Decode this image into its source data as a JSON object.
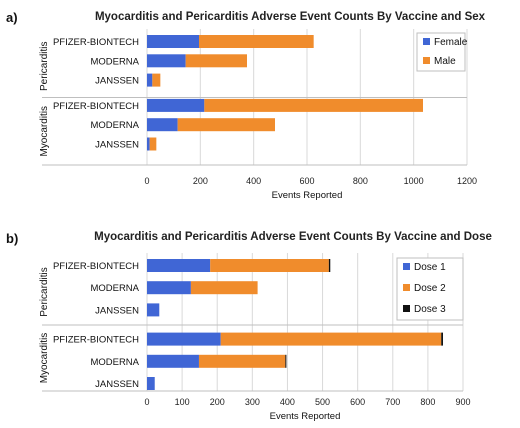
{
  "chart_data": [
    {
      "panel": "a)",
      "type": "bar",
      "orientation": "horizontal",
      "stacked": true,
      "title": "Myocarditis and Pericarditis Adverse Event Counts By Vaccine and Sex",
      "xlabel": "Events Reported",
      "xlim": [
        0,
        1200
      ],
      "xticks": [
        0,
        200,
        400,
        600,
        800,
        1000,
        1200
      ],
      "groups": [
        {
          "name": "Pericarditis",
          "categories": [
            "PFIZER-BIONTECH",
            "MODERNA",
            "JANSSEN"
          ]
        },
        {
          "name": "Myocarditis",
          "categories": [
            "PFIZER-BIONTECH",
            "MODERNA",
            "JANSSEN"
          ]
        }
      ],
      "series": [
        {
          "name": "Female",
          "color": "#4066D5",
          "values": [
            195,
            145,
            20,
            215,
            115,
            10
          ]
        },
        {
          "name": "Male",
          "color": "#F08C2C",
          "values": [
            430,
            230,
            30,
            820,
            365,
            25
          ]
        }
      ],
      "legend_position": "top-right",
      "grid": true
    },
    {
      "panel": "b)",
      "type": "bar",
      "orientation": "horizontal",
      "stacked": true,
      "title": "Myocarditis and Pericarditis Adverse Event Counts By Vaccine and Dose",
      "xlabel": "Events Reported",
      "xlim": [
        0,
        900
      ],
      "xticks": [
        0,
        100,
        200,
        300,
        400,
        500,
        600,
        700,
        800,
        900
      ],
      "groups": [
        {
          "name": "Pericarditis",
          "categories": [
            "PFIZER-BIONTECH",
            "MODERNA",
            "JANSSEN"
          ]
        },
        {
          "name": "Myocarditis",
          "categories": [
            "PFIZER-BIONTECH",
            "MODERNA",
            "JANSSEN"
          ]
        }
      ],
      "series": [
        {
          "name": "Dose 1",
          "color": "#4066D5",
          "values": [
            180,
            125,
            35,
            210,
            148,
            22
          ]
        },
        {
          "name": "Dose 2",
          "color": "#F08C2C",
          "values": [
            338,
            190,
            0,
            628,
            246,
            0
          ]
        },
        {
          "name": "Dose 3",
          "color": "#111111",
          "values": [
            4,
            0,
            0,
            5,
            3,
            0
          ]
        }
      ],
      "legend_position": "top-right",
      "grid": true
    }
  ]
}
